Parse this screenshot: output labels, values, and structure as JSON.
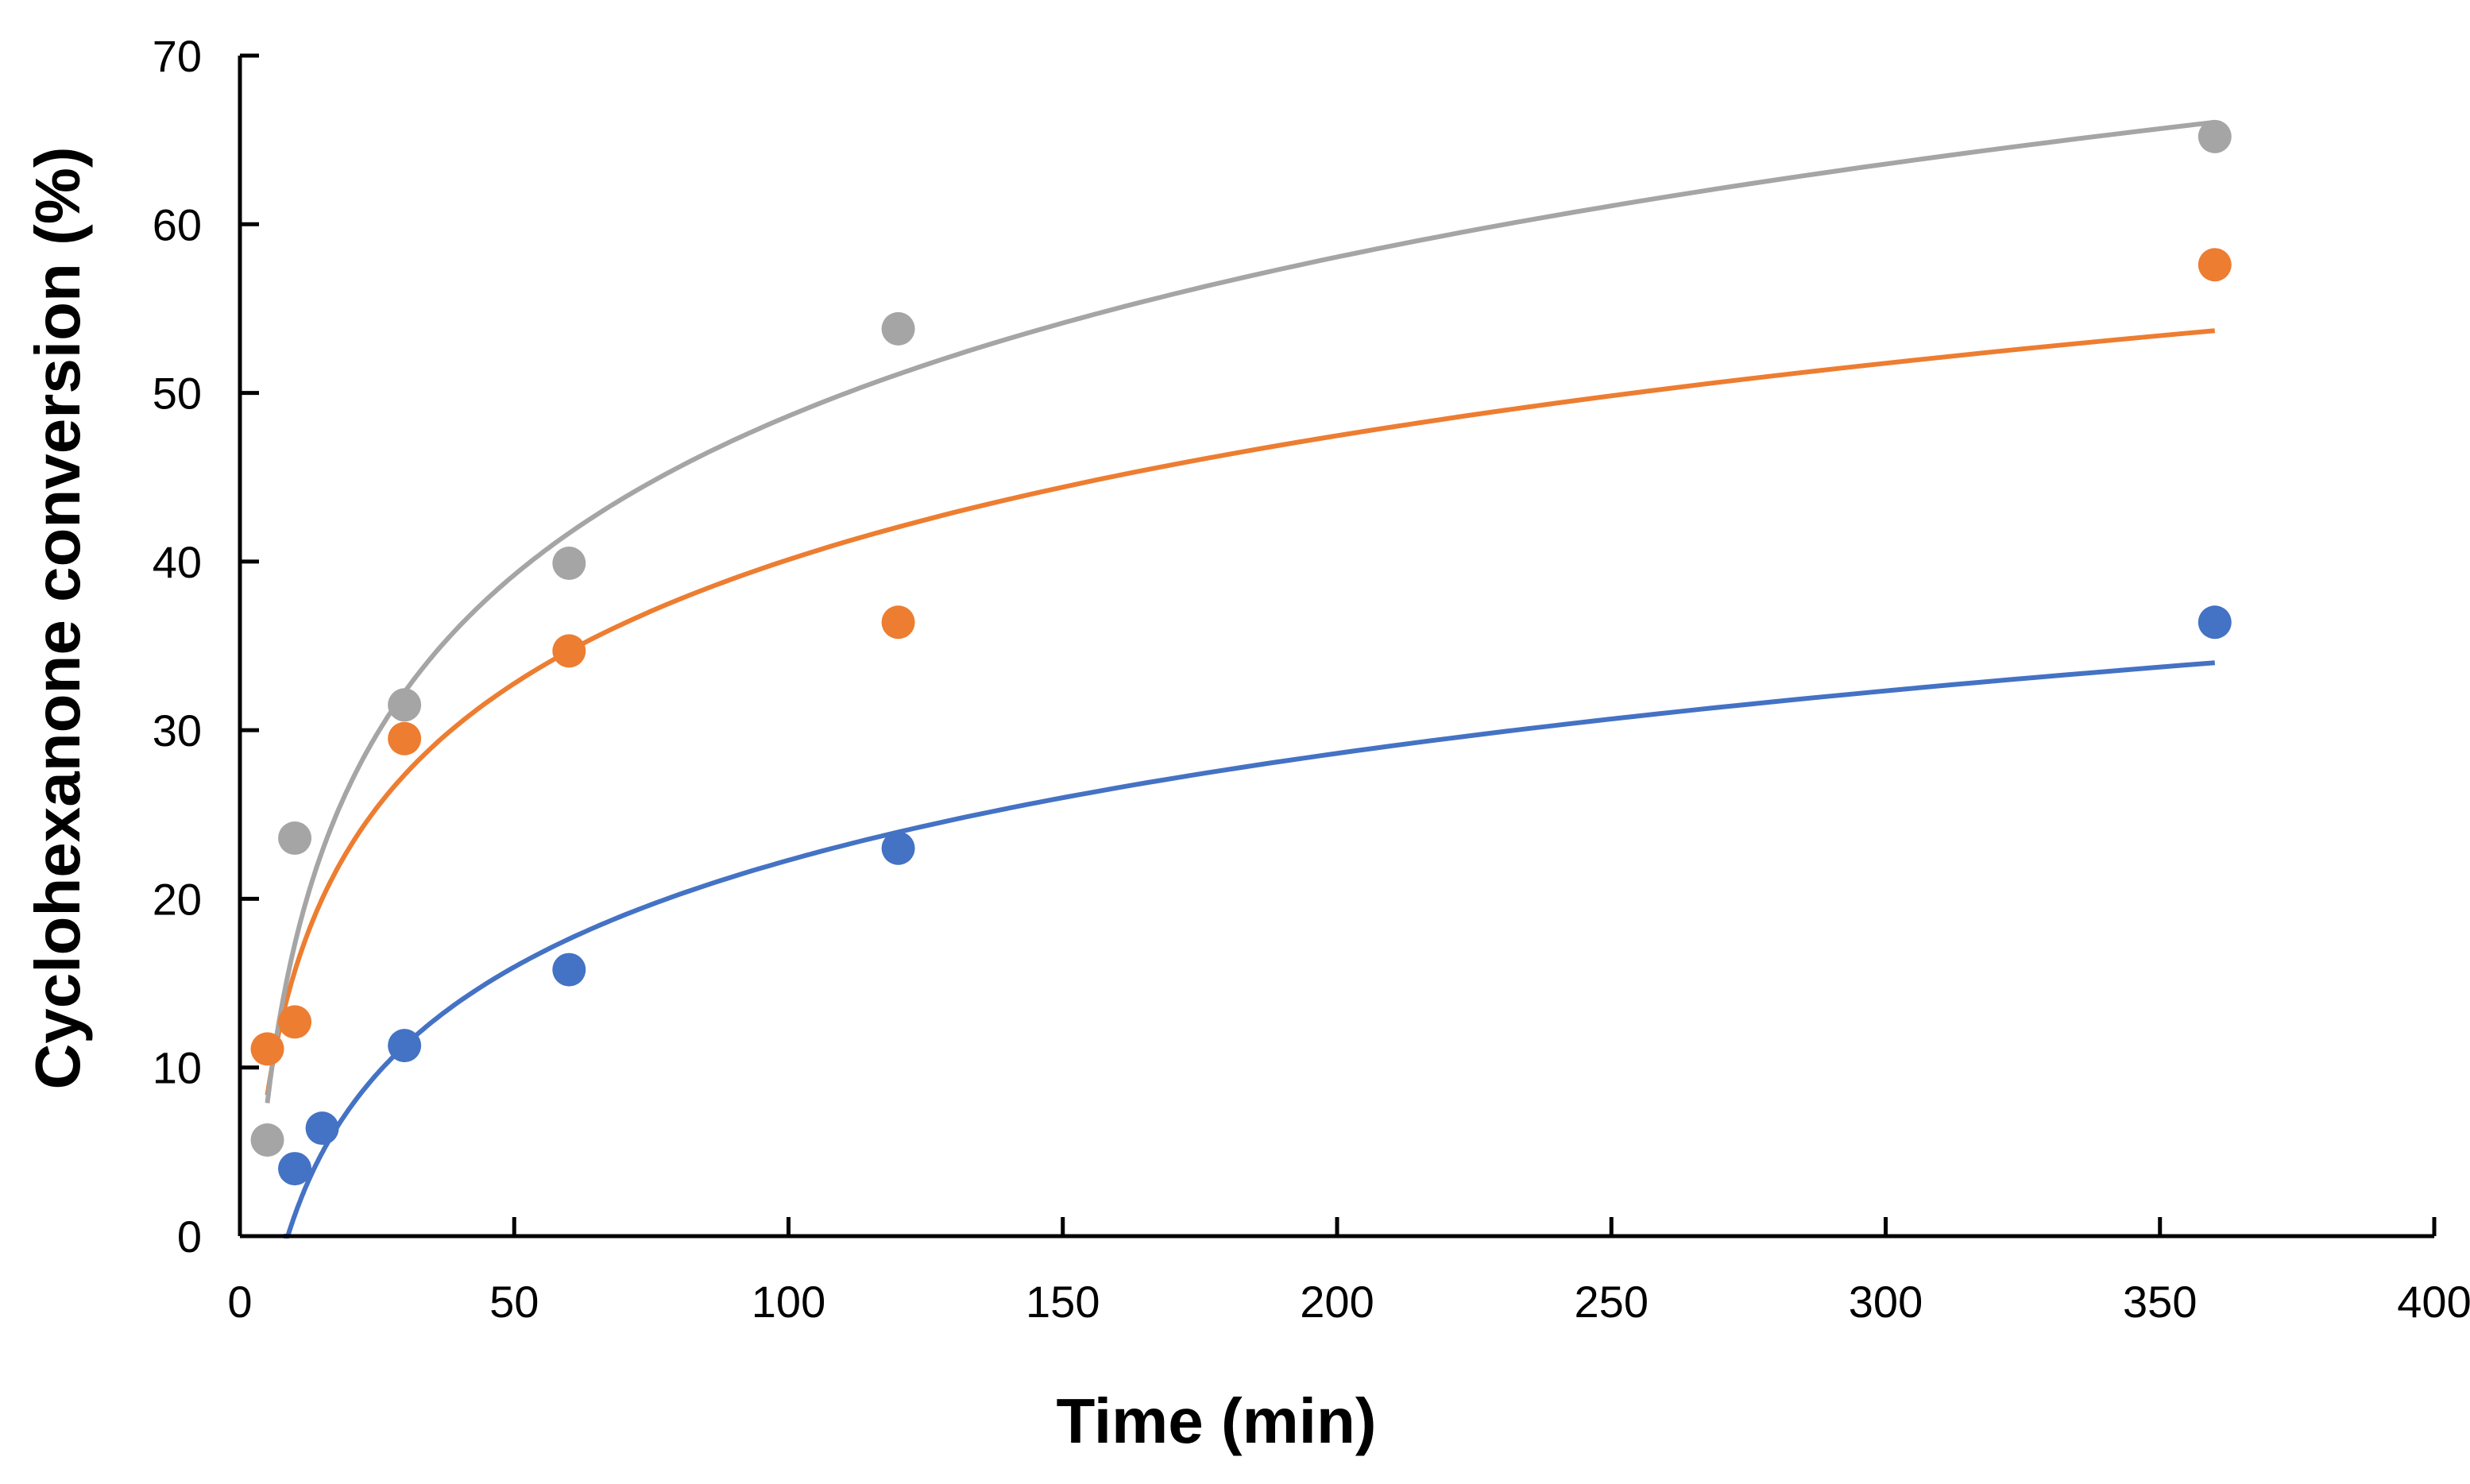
{
  "chart_data": {
    "type": "scatter",
    "title": "",
    "xlabel": "Time (min)",
    "ylabel": "Cyclohexanone conversion (%)",
    "xlim": [
      0,
      400
    ],
    "ylim": [
      0,
      70
    ],
    "xticks": [
      0,
      50,
      100,
      150,
      200,
      250,
      300,
      350,
      400
    ],
    "yticks": [
      0,
      10,
      20,
      30,
      40,
      50,
      60,
      70
    ],
    "grid": false,
    "legend": "none",
    "trendline": "logarithmic",
    "series": [
      {
        "name": "blue",
        "color": "#4472C4",
        "points": [
          [
            10,
            4.0
          ],
          [
            15,
            6.4
          ],
          [
            30,
            11.3
          ],
          [
            60,
            15.8
          ],
          [
            120,
            23.0
          ],
          [
            360,
            36.4
          ]
        ],
        "fit": {
          "a": 9.14,
          "b": -19.8,
          "x_start": 8,
          "x_end": 360
        }
      },
      {
        "name": "orange",
        "color": "#ED7D31",
        "points": [
          [
            5,
            11.1
          ],
          [
            10,
            12.7
          ],
          [
            30,
            29.5
          ],
          [
            60,
            34.7
          ],
          [
            120,
            36.4
          ],
          [
            360,
            57.6
          ]
        ],
        "fit": {
          "a": 10.6,
          "b": -8.7,
          "x_start": 5,
          "x_end": 360
        }
      },
      {
        "name": "gray",
        "color": "#A5A5A5",
        "points": [
          [
            5,
            5.7
          ],
          [
            10,
            23.6
          ],
          [
            30,
            31.5
          ],
          [
            60,
            39.9
          ],
          [
            120,
            53.8
          ],
          [
            360,
            65.2
          ]
        ],
        "fit": {
          "a": 13.6,
          "b": -14.0,
          "x_start": 5,
          "x_end": 360
        }
      }
    ]
  }
}
